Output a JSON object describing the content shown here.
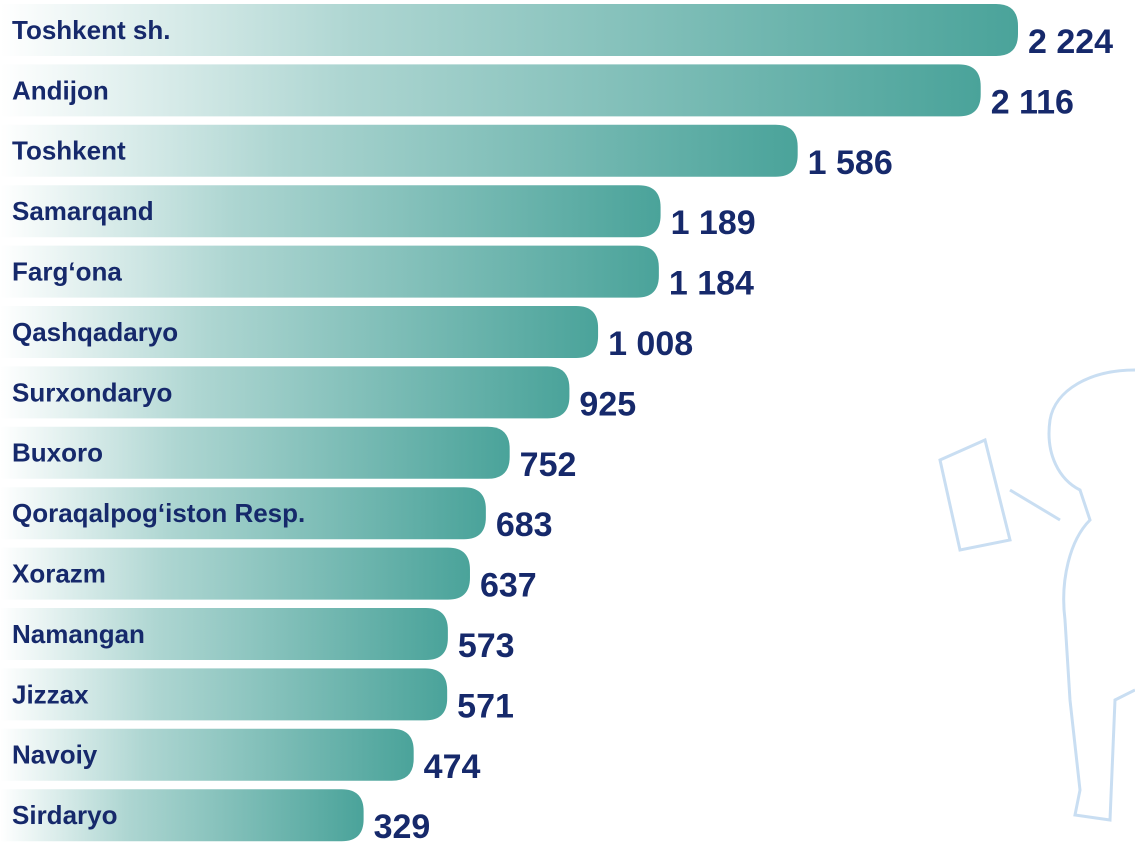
{
  "chart_data": {
    "type": "hbar",
    "categories": [
      "Toshkent sh.",
      "Andijon",
      "Toshkent",
      "Samarqand",
      "Farg‘ona",
      "Qashqadaryo",
      "Surxondaryo",
      "Buxoro",
      "Qoraqalpog‘iston Resp.",
      "Xorazm",
      "Namangan",
      "Jizzax",
      "Navoiy",
      "Sirdaryo"
    ],
    "values": [
      2224,
      2116,
      1586,
      1189,
      1184,
      1008,
      925,
      752,
      683,
      637,
      573,
      571,
      474,
      329
    ],
    "value_labels": [
      "2 224",
      "2 116",
      "1 586",
      "1 189",
      "1 184",
      "1 008",
      "925",
      "752",
      "683",
      "637",
      "573",
      "571",
      "474",
      "329"
    ],
    "color": "#4aa39a"
  }
}
